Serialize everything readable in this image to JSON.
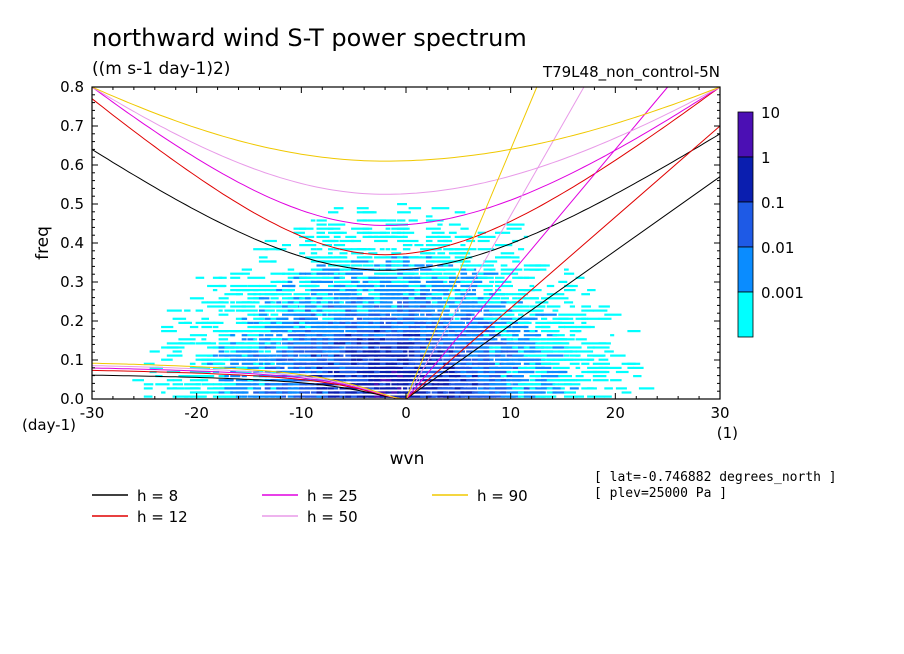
{
  "chart_data": {
    "type": "heatmap",
    "title": "northward wind S-T power spectrum",
    "subtitle": "((m s-1 day-1)2)",
    "case_label": "T79L48_non_control-5N",
    "xlabel": "wvn",
    "ylabel": "freq",
    "x_unit": "(1)",
    "y_unit": "(day-1)",
    "xlim": [
      -30,
      30
    ],
    "ylim": [
      0,
      0.8
    ],
    "x_ticks": [
      "-30",
      "-20",
      "-10",
      "0",
      "10",
      "20",
      "30"
    ],
    "y_ticks": [
      "0.0",
      "0.1",
      "0.2",
      "0.3",
      "0.4",
      "0.5",
      "0.6",
      "0.7",
      "0.8"
    ],
    "colorbar": {
      "labels": [
        "10",
        "1",
        "0.1",
        "0.01",
        "0.001"
      ],
      "colors": [
        "#4b0fb4",
        "#0a1eaf",
        "#1e5ae6",
        "#0a8cff",
        "#00ffff"
      ]
    },
    "series": [
      {
        "name": "h =  8",
        "color": "#000000",
        "kelvin_x": [
          0,
          30
        ],
        "kelvin_y": [
          0,
          0.57
        ],
        "curve_min_y": 0.33,
        "curve_edge_y": [
          0.64,
          0.68
        ],
        "rossby_edge_y": 0.05
      },
      {
        "name": "h = 12",
        "color": "#e00000",
        "kelvin_x": [
          0,
          30
        ],
        "kelvin_y": [
          0,
          0.7
        ],
        "curve_min_y": 0.37,
        "curve_edge_y": [
          0.77,
          0.8
        ],
        "rossby_edge_y": 0.06
      },
      {
        "name": "h = 25",
        "color": "#e000e0",
        "kelvin_x": [
          0,
          25
        ],
        "kelvin_y": [
          0,
          0.8
        ],
        "curve_min_y": 0.445,
        "curve_edge_y": [
          0.8,
          0.8
        ],
        "rossby_edge_y": 0.065
      },
      {
        "name": "h = 50",
        "color": "#e89ae8",
        "kelvin_x": [
          0,
          17
        ],
        "kelvin_y": [
          0,
          0.8
        ],
        "curve_min_y": 0.525,
        "curve_edge_y": [
          0.8,
          0.8
        ],
        "rossby_edge_y": 0.07
      },
      {
        "name": "h = 90",
        "color": "#f0c800",
        "kelvin_x": [
          0,
          12.5
        ],
        "kelvin_y": [
          0,
          0.8
        ],
        "curve_min_y": 0.61,
        "curve_edge_y": [
          0.8,
          0.8
        ],
        "rossby_edge_y": 0.075
      }
    ],
    "grid": false,
    "legend_placement": "bottom-left"
  },
  "info": {
    "lat": "[ lat=-0.746882 degrees_north ]",
    "plev": "[ plev=25000 Pa ]"
  }
}
